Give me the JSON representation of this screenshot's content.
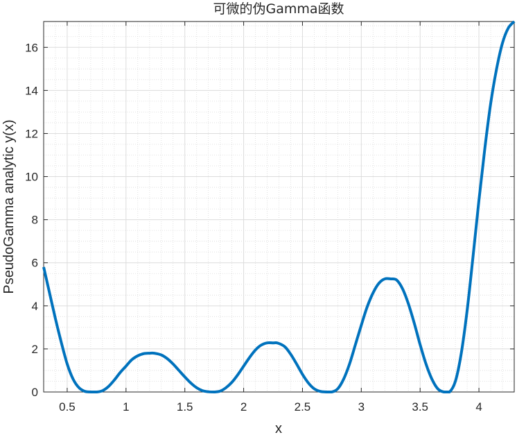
{
  "chart_data": {
    "type": "line",
    "title": "可微的伪Gamma函数",
    "xlabel": "x",
    "ylabel": "PseudoGamma analytic y(x)",
    "xlim": [
      0.3,
      4.3
    ],
    "ylim": [
      0,
      17.2
    ],
    "x_ticks": [
      0.5,
      1,
      1.5,
      2,
      2.5,
      3,
      3.5,
      4
    ],
    "x_tick_labels": [
      "0.5",
      "1",
      "1.5",
      "2",
      "2.5",
      "3",
      "3.5",
      "4"
    ],
    "y_ticks": [
      0,
      2,
      4,
      6,
      8,
      10,
      12,
      14,
      16
    ],
    "y_tick_labels": [
      "0",
      "2",
      "4",
      "6",
      "8",
      "10",
      "12",
      "14",
      "16"
    ],
    "grid": true,
    "minor_grid": true,
    "series": [
      {
        "color": "#0072BD",
        "x": [
          0.3,
          0.35,
          0.4,
          0.45,
          0.5,
          0.55,
          0.6,
          0.65,
          0.7,
          0.75,
          0.8,
          0.85,
          0.9,
          0.95,
          1.0,
          1.05,
          1.1,
          1.15,
          1.2,
          1.24,
          1.3,
          1.35,
          1.4,
          1.45,
          1.5,
          1.55,
          1.6,
          1.65,
          1.7,
          1.75,
          1.8,
          1.85,
          1.9,
          1.95,
          2.0,
          2.05,
          2.1,
          2.15,
          2.2,
          2.25,
          2.29,
          2.35,
          2.4,
          2.45,
          2.5,
          2.55,
          2.6,
          2.65,
          2.7,
          2.75,
          2.8,
          2.85,
          2.9,
          2.95,
          3.0,
          3.05,
          3.1,
          3.15,
          3.2,
          3.25,
          3.3,
          3.35,
          3.4,
          3.45,
          3.5,
          3.55,
          3.6,
          3.65,
          3.7,
          3.75,
          3.8,
          3.85,
          3.9,
          3.95,
          4.0,
          4.05,
          4.1,
          4.15,
          4.2,
          4.25,
          4.3
        ],
        "y": [
          5.8,
          4.6,
          3.4,
          2.3,
          1.3,
          0.6,
          0.2,
          0.03,
          0.0,
          0.0,
          0.06,
          0.25,
          0.55,
          0.9,
          1.2,
          1.5,
          1.68,
          1.78,
          1.8,
          1.8,
          1.72,
          1.55,
          1.3,
          1.0,
          0.7,
          0.42,
          0.2,
          0.06,
          0.01,
          0.0,
          0.04,
          0.2,
          0.45,
          0.8,
          1.2,
          1.6,
          1.95,
          2.18,
          2.28,
          2.28,
          2.27,
          2.1,
          1.75,
          1.3,
          0.82,
          0.42,
          0.15,
          0.03,
          0.0,
          0.0,
          0.15,
          0.6,
          1.3,
          2.2,
          3.1,
          3.95,
          4.6,
          5.05,
          5.25,
          5.25,
          5.2,
          4.8,
          4.1,
          3.2,
          2.2,
          1.3,
          0.6,
          0.15,
          0.0,
          0.0,
          0.5,
          1.8,
          3.8,
          6.3,
          8.9,
          11.3,
          13.4,
          15.0,
          16.2,
          16.9,
          17.2
        ]
      }
    ]
  }
}
